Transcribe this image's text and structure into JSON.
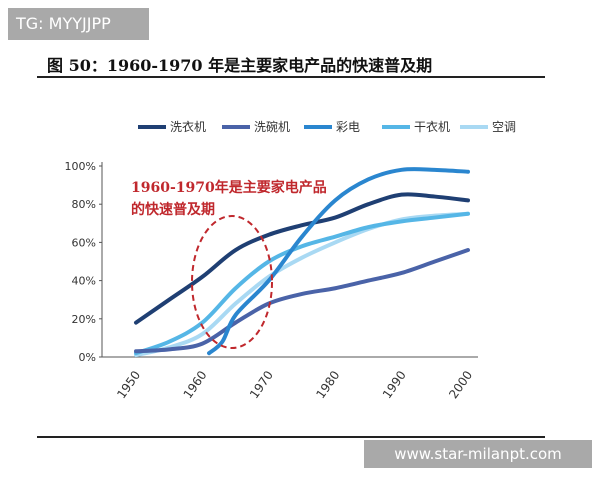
{
  "header": {
    "tag": "TG: MYYJJPP",
    "title": "图 50：1960-1970 年是主要家电产品的快速普及期"
  },
  "footer": {
    "watermark": "www.star-milanpt.com"
  },
  "chart_data": {
    "type": "line",
    "xlabel": "",
    "ylabel": "",
    "x_ticks": [
      "1950",
      "1960",
      "1970",
      "1980",
      "1990",
      "2000"
    ],
    "y_ticks": [
      "0%",
      "20%",
      "40%",
      "60%",
      "80%",
      "100%"
    ],
    "xlim": [
      1950,
      2000
    ],
    "ylim": [
      0,
      100
    ],
    "legend_position": "top",
    "grid": false,
    "annotation": {
      "lines": [
        "1960-1970年是主要家电产品",
        "的快速普及期"
      ],
      "color": "#c0282d"
    },
    "series": [
      {
        "name": "洗衣机",
        "color": "#1f3f73",
        "points": [
          [
            1950,
            18
          ],
          [
            1955,
            30
          ],
          [
            1960,
            42
          ],
          [
            1965,
            56
          ],
          [
            1970,
            64
          ],
          [
            1975,
            69
          ],
          [
            1980,
            73
          ],
          [
            1985,
            80
          ],
          [
            1990,
            85
          ],
          [
            1995,
            84
          ],
          [
            2000,
            82
          ]
        ]
      },
      {
        "name": "洗碗机",
        "color": "#4a63a8",
        "points": [
          [
            1950,
            3
          ],
          [
            1955,
            4
          ],
          [
            1960,
            7
          ],
          [
            1965,
            18
          ],
          [
            1970,
            28
          ],
          [
            1975,
            33
          ],
          [
            1980,
            36
          ],
          [
            1985,
            40
          ],
          [
            1990,
            44
          ],
          [
            1995,
            50
          ],
          [
            2000,
            56
          ]
        ]
      },
      {
        "name": "彩电",
        "color": "#2a86cf",
        "points": [
          [
            1961,
            2
          ],
          [
            1963,
            8
          ],
          [
            1965,
            22
          ],
          [
            1970,
            40
          ],
          [
            1975,
            63
          ],
          [
            1980,
            82
          ],
          [
            1985,
            93
          ],
          [
            1990,
            98
          ],
          [
            1995,
            98
          ],
          [
            2000,
            97
          ]
        ]
      },
      {
        "name": "干衣机",
        "color": "#55b6e6",
        "points": [
          [
            1950,
            2
          ],
          [
            1955,
            8
          ],
          [
            1960,
            18
          ],
          [
            1965,
            36
          ],
          [
            1970,
            50
          ],
          [
            1975,
            58
          ],
          [
            1980,
            63
          ],
          [
            1985,
            68
          ],
          [
            1990,
            71
          ],
          [
            1995,
            73
          ],
          [
            2000,
            75
          ]
        ]
      },
      {
        "name": "空调",
        "color": "#a9d9f3",
        "points": [
          [
            1950,
            1
          ],
          [
            1955,
            5
          ],
          [
            1960,
            12
          ],
          [
            1965,
            28
          ],
          [
            1970,
            42
          ],
          [
            1975,
            52
          ],
          [
            1980,
            60
          ],
          [
            1985,
            67
          ],
          [
            1990,
            72
          ],
          [
            1995,
            74
          ],
          [
            2000,
            75
          ]
        ]
      }
    ]
  }
}
